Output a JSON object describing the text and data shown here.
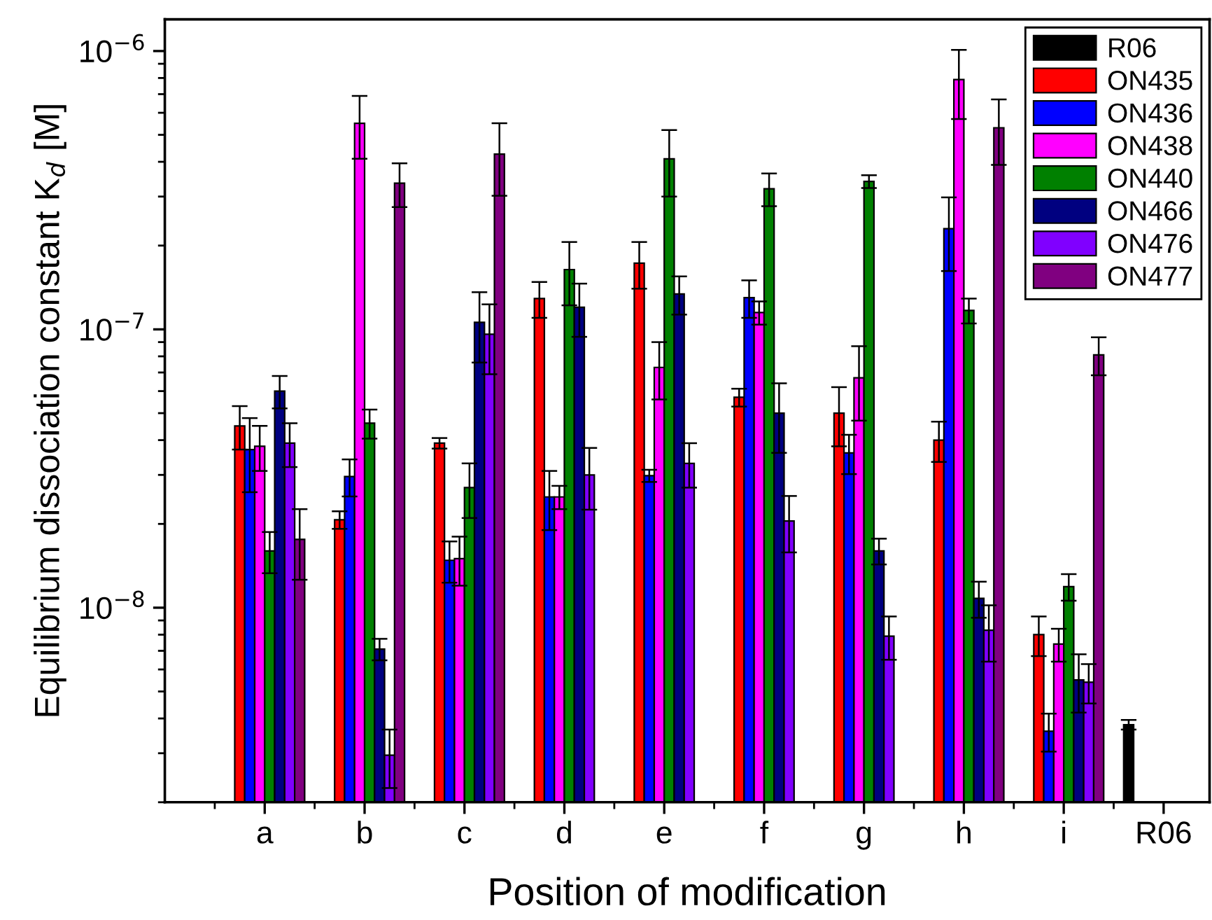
{
  "chart_data": {
    "type": "bar",
    "xlabel": "Position of modification",
    "ylabel": "Equilibrium dissociation constant K$_{d}$ [M]",
    "categories": [
      "a",
      "b",
      "c",
      "d",
      "e",
      "f",
      "g",
      "h",
      "i",
      "R06"
    ],
    "log": "y",
    "ylim": [
      2e-09,
      1.3e-06
    ],
    "yticks": [
      {
        "value": 1e-08,
        "label": "10$^{−8}$"
      },
      {
        "value": 1e-07,
        "label": "10$^{−7}$"
      },
      {
        "value": 1e-06,
        "label": "10$^{−6}$"
      }
    ],
    "grid": false,
    "legend": "top right",
    "series": [
      {
        "name": "R06",
        "color": "#000000",
        "values": [
          null,
          null,
          null,
          null,
          null,
          null,
          null,
          null,
          null,
          3.8e-09
        ],
        "errors": [
          null,
          null,
          null,
          null,
          null,
          null,
          null,
          null,
          null,
          1.5e-10
        ]
      },
      {
        "name": "ON435",
        "color": "#ff0000",
        "values": [
          4.5e-08,
          2.07e-08,
          3.9e-08,
          1.29e-07,
          1.73e-07,
          5.7e-08,
          5e-08,
          4e-08,
          8e-09,
          null
        ],
        "errors": [
          8e-09,
          1.5e-09,
          1.7e-09,
          1.9e-08,
          3.3e-08,
          4.2e-09,
          1.2e-08,
          6.6e-09,
          1.3e-09,
          null
        ]
      },
      {
        "name": "ON436",
        "color": "#0000ff",
        "values": [
          3.7e-08,
          2.96e-08,
          1.48e-08,
          2.5e-08,
          2.98e-08,
          1.3e-07,
          3.6e-08,
          2.3e-07,
          3.6e-09,
          null
        ],
        "errors": [
          1.1e-08,
          4.5e-09,
          2.5e-09,
          6e-09,
          1.5e-09,
          2e-08,
          5.8e-09,
          6.8e-08,
          5.6e-10,
          null
        ]
      },
      {
        "name": "ON438",
        "color": "#ff00ff",
        "values": [
          3.8e-08,
          5.5e-07,
          1.5e-08,
          2.5e-08,
          7.3e-08,
          1.15e-07,
          6.7e-08,
          7.9e-07,
          7.4e-09,
          null
        ],
        "errors": [
          7e-09,
          1.4e-07,
          3e-09,
          2.4e-09,
          1.7e-08,
          1.1e-08,
          2e-08,
          2.2e-07,
          1e-09,
          null
        ]
      },
      {
        "name": "ON440",
        "color": "#008000",
        "values": [
          1.6e-08,
          4.6e-08,
          2.7e-08,
          1.64e-07,
          4.1e-07,
          3.2e-07,
          3.4e-07,
          1.17e-07,
          1.19e-08,
          null
        ],
        "errors": [
          2.7e-09,
          5.5e-09,
          6e-09,
          4.2e-08,
          1.1e-07,
          4.3e-08,
          1.8e-08,
          1.2e-08,
          1.3e-09,
          null
        ]
      },
      {
        "name": "ON466",
        "color": "#000080",
        "values": [
          6e-08,
          7.1e-09,
          1.06e-07,
          1.2e-07,
          1.34e-07,
          5e-08,
          1.6e-08,
          1.08e-08,
          5.5e-09,
          null
        ],
        "errors": [
          8e-09,
          6.3e-10,
          3e-08,
          2.6e-08,
          2.1e-08,
          1.4e-08,
          1.7e-09,
          1.6e-09,
          1.3e-09,
          null
        ]
      },
      {
        "name": "ON476",
        "color": "#8000ff",
        "values": [
          3.9e-08,
          2.95e-09,
          9.6e-08,
          3e-08,
          3.3e-08,
          2.05e-08,
          7.9e-09,
          8.3e-09,
          5.4e-09,
          null
        ],
        "errors": [
          7e-09,
          7e-10,
          2.7e-08,
          7.5e-09,
          6e-09,
          4.7e-09,
          1.4e-09,
          1.9e-09,
          8.7e-10,
          null
        ]
      },
      {
        "name": "ON477",
        "color": "#800080",
        "values": [
          1.76e-08,
          3.35e-07,
          4.26e-07,
          null,
          null,
          null,
          null,
          5.3e-07,
          8.1e-08,
          null
        ],
        "errors": [
          5e-09,
          6e-08,
          1.24e-07,
          null,
          null,
          null,
          null,
          1.4e-07,
          1.26e-08,
          null
        ]
      }
    ]
  }
}
